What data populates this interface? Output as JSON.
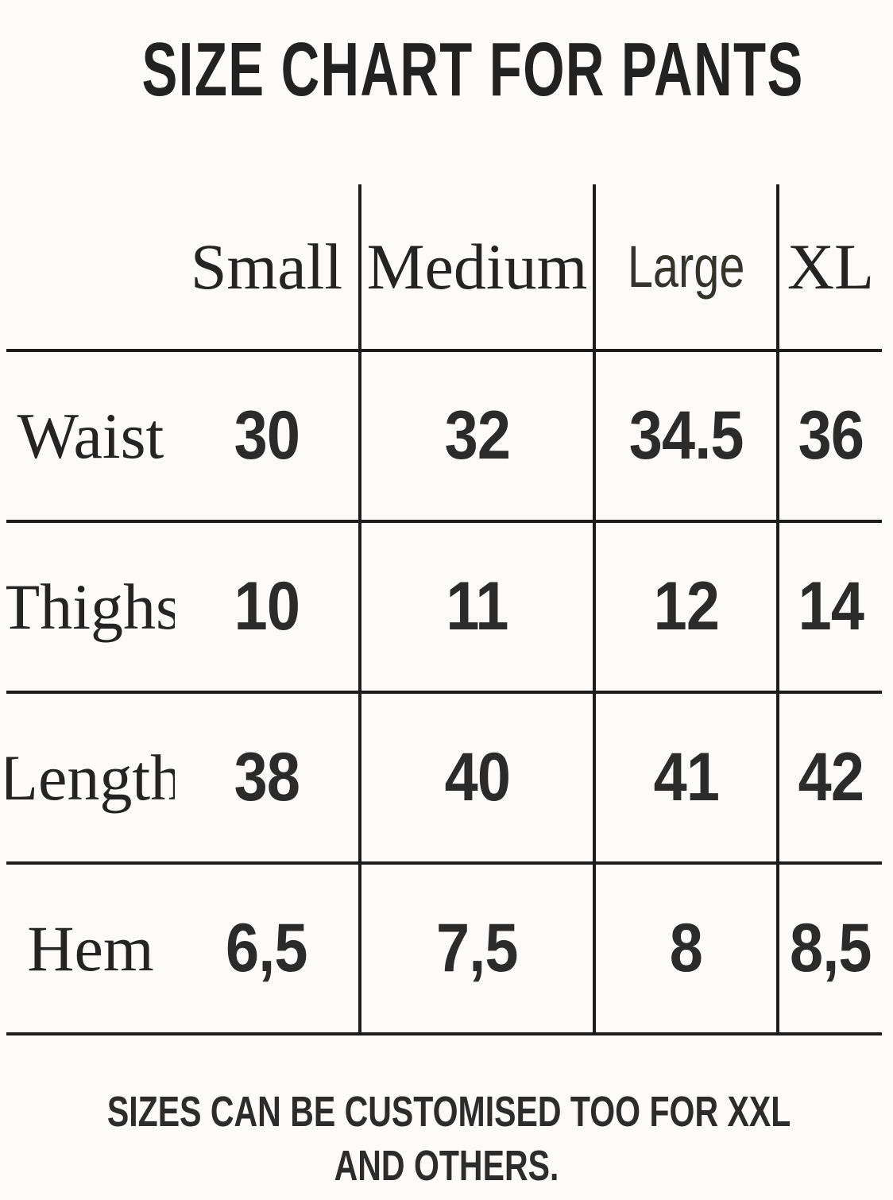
{
  "title": "SIZE CHART FOR PANTS",
  "footer_lines": [
    "SIZES CAN BE CUSTOMISED TOO FOR XXL",
    "AND OTHERS."
  ],
  "colors": {
    "background": "#fcfbf9",
    "text": "#242424",
    "grid_line": "#1d1d1d",
    "large_header_text": "#34342d"
  },
  "chart_data": {
    "type": "table",
    "title": "SIZE CHART FOR PANTS",
    "columns": [
      "Small",
      "Medium",
      "Large",
      "XL"
    ],
    "row_labels": [
      "Waist",
      "Thighs",
      "Length",
      "Hem"
    ],
    "rows": [
      {
        "label": "Waist",
        "values": [
          "30",
          "32",
          "34.5",
          "36"
        ]
      },
      {
        "label": "Thighs",
        "values": [
          "10",
          "11",
          "12",
          "14"
        ]
      },
      {
        "label": "Length",
        "values": [
          "38",
          "40",
          "41",
          "42"
        ]
      },
      {
        "label": "Hem",
        "values": [
          "6,5",
          "7,5",
          "8",
          "8,5"
        ]
      }
    ],
    "note": "SIZES CAN BE CUSTOMISED TOO FOR XXL AND OTHERS.",
    "layout": {
      "grid": "partial-borders",
      "header_row": true,
      "first_column_no_divider": true
    }
  }
}
